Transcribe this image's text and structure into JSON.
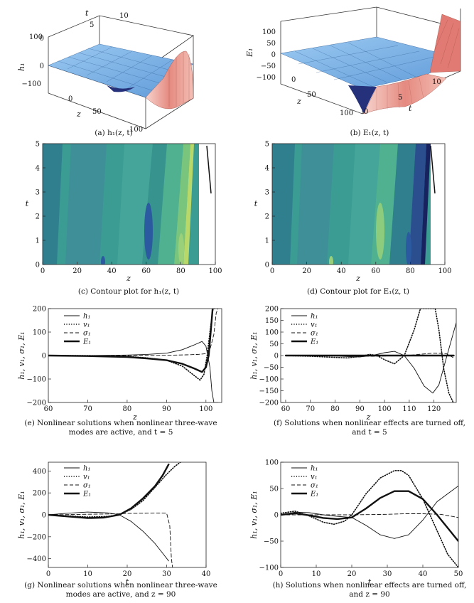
{
  "panels": {
    "a": {
      "caption": "(a) h₁(z, t)",
      "zlabel": "h₁",
      "xlabel": "z",
      "ylabel": "t",
      "zticks": [
        "100",
        "0",
        "−100"
      ],
      "xticks": [
        "0",
        "50",
        "100"
      ],
      "yticks": [
        "0",
        "5",
        "10"
      ]
    },
    "b": {
      "caption": "(b) E₁(z, t)",
      "zlabel": "E₁",
      "xlabel": "z",
      "ylabel": "t",
      "zticks": [
        "100",
        "50",
        "0",
        "−50",
        "−100"
      ],
      "xticks": [
        "0",
        "50",
        "100"
      ],
      "yticks": [
        "0",
        "5",
        "10"
      ]
    },
    "c": {
      "caption": "(c) Contour plot for h₁(z, t)"
    },
    "d": {
      "caption": "(d) Contour plot for E₁(z, t)"
    },
    "e": {
      "caption_lines": [
        "(e) Nonlinear solutions when nonlinear three-wave",
        "modes are active, and t = 5"
      ]
    },
    "f": {
      "caption_lines": [
        "(f) Solutions when nonlinear effects are turned off,",
        "and t = 5"
      ]
    },
    "g": {
      "caption_lines": [
        "(g) Nonlinear solutions when nonlinear three-wave",
        "modes are active, and z = 90"
      ]
    },
    "h": {
      "caption_lines": [
        "(h) Solutions when nonlinear effects are turned off,",
        "and z = 90"
      ]
    }
  },
  "colors": {
    "surface_blue": "#7fb6e8",
    "surface_red": "#e07a72",
    "surface_pink": "#f3c9c2",
    "contour_dark": "#2e4d8f",
    "contour_teal": "#3a9c92",
    "contour_green": "#5cbb86",
    "contour_light": "#b8d96a"
  },
  "chart_data": [
    {
      "type": "surface3d",
      "panel": "a",
      "title": "(a) h₁(z, t)",
      "xlabel": "z",
      "ylabel": "t",
      "zlabel": "h₁",
      "xlim": [
        0,
        100
      ],
      "ylim": [
        0,
        10
      ],
      "zlim": [
        -150,
        150
      ]
    },
    {
      "type": "surface3d",
      "panel": "b",
      "title": "(b) E₁(z, t)",
      "xlabel": "z",
      "ylabel": "t",
      "zlabel": "E₁",
      "xlim": [
        0,
        100
      ],
      "ylim": [
        0,
        10
      ],
      "zlim": [
        -100,
        100
      ]
    },
    {
      "type": "heatmap",
      "panel": "c",
      "title": "(c) Contour plot for h₁(z, t)",
      "xlabel": "z",
      "ylabel": "t",
      "xlim": [
        0,
        100
      ],
      "ylim": [
        0,
        5
      ],
      "xticks": [
        0,
        20,
        40,
        60,
        80,
        100
      ],
      "yticks": [
        0,
        1,
        2,
        3,
        4,
        5
      ]
    },
    {
      "type": "heatmap",
      "panel": "d",
      "title": "(d) Contour plot for E₁(z, t)",
      "xlabel": "z",
      "ylabel": "t",
      "xlim": [
        0,
        100
      ],
      "ylim": [
        0,
        5
      ],
      "xticks": [
        0,
        20,
        40,
        60,
        80,
        100
      ],
      "yticks": [
        0,
        1,
        2,
        3,
        4,
        5
      ]
    },
    {
      "type": "line",
      "panel": "e",
      "xlabel": "z",
      "ylabel": "h₁, v₁, σ₁, E₁",
      "xlim": [
        60,
        104
      ],
      "ylim": [
        -200,
        200
      ],
      "xticks": [
        60,
        70,
        80,
        90,
        100
      ],
      "yticks": [
        -200,
        -100,
        0,
        100,
        200
      ],
      "series": [
        {
          "name": "h₁",
          "style": "thin",
          "x": [
            60,
            70,
            80,
            85,
            90,
            94,
            97,
            99,
            100,
            101,
            101.5,
            102,
            103
          ],
          "y": [
            0,
            0,
            2,
            5,
            10,
            25,
            45,
            60,
            40,
            -50,
            -150,
            -200,
            -200
          ]
        },
        {
          "name": "v₁",
          "style": "dotted",
          "x": [
            60,
            70,
            80,
            85,
            90,
            94,
            97,
            98.5,
            99.5,
            100.3,
            101,
            101.8,
            102.5
          ],
          "y": [
            0,
            0,
            -4,
            -10,
            -20,
            -45,
            -85,
            -105,
            -80,
            0,
            100,
            200,
            200
          ]
        },
        {
          "name": "σ₁",
          "style": "dashed",
          "x": [
            60,
            70,
            80,
            90,
            95,
            98,
            100,
            101,
            102,
            102.6,
            103
          ],
          "y": [
            0,
            0,
            0,
            1,
            3,
            5,
            8,
            25,
            90,
            180,
            200
          ]
        },
        {
          "name": "E₁",
          "style": "thick",
          "x": [
            60,
            70,
            80,
            85,
            90,
            94,
            97,
            99,
            100,
            100.7,
            101.2,
            101.7
          ],
          "y": [
            0,
            -2,
            -6,
            -12,
            -20,
            -35,
            -55,
            -70,
            -50,
            0,
            100,
            200
          ]
        }
      ]
    },
    {
      "type": "line",
      "panel": "f",
      "xlabel": "z",
      "ylabel": "h₁, v₁, σ₁, E₁",
      "xlim": [
        58,
        129
      ],
      "ylim": [
        -200,
        200
      ],
      "xticks": [
        60,
        70,
        80,
        90,
        100,
        110,
        120
      ],
      "yticks": [
        -200,
        -150,
        -100,
        -50,
        0,
        50,
        100,
        150,
        200
      ],
      "series": [
        {
          "name": "h₁",
          "style": "thin",
          "x": [
            60,
            70,
            80,
            90,
            95,
            100,
            104,
            108,
            112,
            116,
            119.5,
            122,
            125,
            129
          ],
          "y": [
            0,
            0,
            -2,
            -6,
            0,
            12,
            18,
            0,
            -55,
            -130,
            -160,
            -125,
            -10,
            140
          ]
        },
        {
          "name": "v₁",
          "style": "dotted",
          "x": [
            60,
            70,
            80,
            85,
            90,
            94,
            97,
            100,
            104,
            108,
            112,
            114.5,
            117,
            119,
            120.5,
            122,
            124,
            126,
            127.8
          ],
          "y": [
            0,
            -3,
            -8,
            -10,
            -4,
            5,
            0,
            -18,
            -35,
            0,
            110,
            200,
            200,
            200,
            200,
            110,
            -60,
            -160,
            -200
          ]
        },
        {
          "name": "σ₁",
          "style": "dashed",
          "x": [
            60,
            70,
            80,
            90,
            95,
            100,
            105,
            110,
            115,
            120,
            125,
            128
          ],
          "y": [
            0,
            0,
            -1,
            -2,
            -3,
            -2,
            -1,
            1,
            6,
            10,
            8,
            -10
          ]
        },
        {
          "name": "E₁",
          "style": "thick",
          "x": [
            60,
            128
          ],
          "y": [
            0,
            0
          ]
        }
      ]
    },
    {
      "type": "line",
      "panel": "g",
      "xlabel": "t",
      "ylabel": "h₁, v₁, σ₁, E₁",
      "xlim": [
        0,
        40
      ],
      "ylim": [
        -480,
        480
      ],
      "xticks": [
        0,
        10,
        20,
        30,
        40
      ],
      "yticks": [
        -400,
        -200,
        0,
        200,
        400
      ],
      "series": [
        {
          "name": "h₁",
          "style": "thin",
          "x": [
            0,
            5,
            10,
            15,
            18,
            21,
            24,
            27,
            29,
            30.5
          ],
          "y": [
            0,
            15,
            25,
            18,
            0,
            -60,
            -150,
            -260,
            -350,
            -420
          ]
        },
        {
          "name": "v₁",
          "style": "dotted",
          "x": [
            0,
            5,
            10,
            15,
            18,
            21,
            24,
            27,
            30,
            32,
            33.5
          ],
          "y": [
            0,
            -10,
            -20,
            -15,
            0,
            50,
            130,
            250,
            370,
            440,
            480
          ]
        },
        {
          "name": "σ₁",
          "style": "dashed",
          "x": [
            0,
            5,
            10,
            15,
            20,
            25,
            28,
            30,
            30.8,
            31.2,
            31.5
          ],
          "y": [
            0,
            2,
            5,
            8,
            12,
            15,
            16,
            15,
            -100,
            -400,
            -480
          ]
        },
        {
          "name": "E₁",
          "style": "thick",
          "x": [
            0,
            5,
            10,
            14,
            18,
            21,
            24,
            27,
            29,
            30.5
          ],
          "y": [
            0,
            -15,
            -30,
            -25,
            0,
            60,
            150,
            260,
            360,
            460
          ]
        }
      ]
    },
    {
      "type": "line",
      "panel": "h",
      "xlabel": "t",
      "ylabel": "h₁, v₁, σ₁, E₁",
      "xlim": [
        0,
        50
      ],
      "ylim": [
        -100,
        100
      ],
      "xticks": [
        0,
        10,
        20,
        30,
        40,
        50
      ],
      "yticks": [
        -100,
        -50,
        0,
        50,
        100
      ],
      "series": [
        {
          "name": "h₁",
          "style": "thin",
          "x": [
            0,
            4,
            8,
            12,
            16,
            20,
            24,
            28,
            32,
            36,
            40,
            44,
            47,
            50
          ],
          "y": [
            0,
            5,
            4,
            0,
            -3,
            -5,
            -20,
            -38,
            -45,
            -38,
            -10,
            25,
            40,
            55
          ]
        },
        {
          "name": "v₁",
          "style": "dotted",
          "x": [
            0,
            4,
            8,
            12,
            15,
            18,
            20,
            24,
            28,
            32,
            34,
            36,
            40,
            44,
            47,
            50
          ],
          "y": [
            3,
            7,
            -2,
            -14,
            -18,
            -12,
            0,
            40,
            70,
            84,
            84,
            75,
            30,
            -30,
            -75,
            -100
          ]
        },
        {
          "name": "σ₁",
          "style": "dashed",
          "x": [
            0,
            10,
            20,
            30,
            35,
            40,
            45,
            50
          ],
          "y": [
            0,
            0,
            0,
            1,
            2,
            2,
            1,
            -5
          ]
        },
        {
          "name": "E₁",
          "style": "thick",
          "x": [
            0,
            4,
            8,
            12,
            16,
            20,
            24,
            28,
            32,
            36,
            40,
            44,
            47,
            50
          ],
          "y": [
            0,
            3,
            -1,
            -6,
            -8,
            -5,
            12,
            32,
            45,
            45,
            30,
            0,
            -25,
            -50
          ]
        }
      ]
    }
  ]
}
